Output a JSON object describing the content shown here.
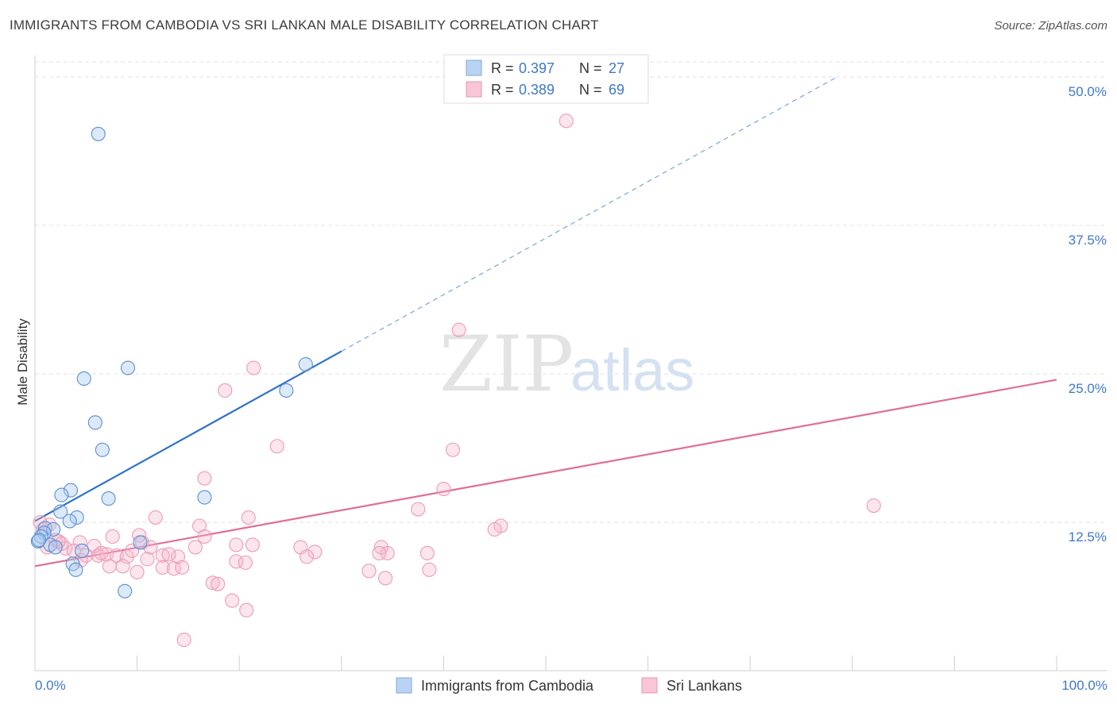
{
  "title": "IMMIGRANTS FROM CAMBODIA VS SRI LANKAN MALE DISABILITY CORRELATION CHART",
  "source": "Source: ZipAtlas.com",
  "watermark": {
    "zip": "ZIP",
    "atlas": "atlas"
  },
  "colors": {
    "blue": "#4a86d0",
    "blue_fill": "#a8c8f0",
    "pink": "#e06d98",
    "pink_fill": "#f5b5c8",
    "axis_text": "#3f78c8",
    "grid": "#e2e2e2"
  },
  "legend_top": [
    {
      "r_label": "R = ",
      "r_value": "0.397",
      "n_label": "N = ",
      "n_value": "27"
    },
    {
      "r_label": "R = ",
      "r_value": "0.389",
      "n_label": "N = ",
      "n_value": "69"
    }
  ],
  "chart_data": {
    "type": "scatter",
    "title": "IMMIGRANTS FROM CAMBODIA VS SRI LANKAN MALE DISABILITY CORRELATION CHART",
    "xlabel": "",
    "ylabel": "Male Disability",
    "xlim": [
      0,
      100
    ],
    "ylim": [
      0,
      50
    ],
    "x_tick_labels": [
      "0.0%",
      "100.0%"
    ],
    "y_ticks": [
      12.5,
      25.0,
      37.5,
      50.0
    ],
    "y_tick_labels": [
      "12.5%",
      "25.0%",
      "37.5%",
      "50.0%"
    ],
    "legend_position": "top-center",
    "series": [
      {
        "name": "Immigrants from Cambodia",
        "color": "#4a86d0",
        "points": [
          [
            6.2,
            45.2
          ],
          [
            4.8,
            24.6
          ],
          [
            9.1,
            25.5
          ],
          [
            5.9,
            20.9
          ],
          [
            6.6,
            18.6
          ],
          [
            3.5,
            15.2
          ],
          [
            2.6,
            14.8
          ],
          [
            7.2,
            14.5
          ],
          [
            16.6,
            14.6
          ],
          [
            2.5,
            13.4
          ],
          [
            4.1,
            12.9
          ],
          [
            3.4,
            12.6
          ],
          [
            1.0,
            12.0
          ],
          [
            1.8,
            11.9
          ],
          [
            0.9,
            11.6
          ],
          [
            0.6,
            11.3
          ],
          [
            10.3,
            10.8
          ],
          [
            1.5,
            10.6
          ],
          [
            2.0,
            10.4
          ],
          [
            4.6,
            10.1
          ],
          [
            0.3,
            10.9
          ],
          [
            3.7,
            9.0
          ],
          [
            4.0,
            8.5
          ],
          [
            8.8,
            6.7
          ],
          [
            24.6,
            23.6
          ],
          [
            26.5,
            25.8
          ],
          [
            0.4,
            11.0
          ]
        ],
        "trend": {
          "x0": 0,
          "y0": 12.6,
          "x1": 30.0,
          "y1": 26.9,
          "dashed_to_x": 78.5,
          "dashed_to_y": 50.0
        }
      },
      {
        "name": "Sri Lankans",
        "color": "#e06d98",
        "points": [
          [
            52.0,
            46.3
          ],
          [
            41.5,
            28.7
          ],
          [
            21.4,
            25.5
          ],
          [
            18.6,
            23.6
          ],
          [
            23.7,
            18.9
          ],
          [
            40.0,
            15.3
          ],
          [
            16.6,
            16.2
          ],
          [
            40.9,
            18.6
          ],
          [
            82.1,
            13.9
          ],
          [
            37.5,
            13.6
          ],
          [
            11.8,
            12.9
          ],
          [
            20.9,
            12.9
          ],
          [
            45.6,
            12.2
          ],
          [
            45.0,
            11.9
          ],
          [
            16.1,
            12.2
          ],
          [
            1.4,
            12.3
          ],
          [
            0.5,
            12.5
          ],
          [
            7.6,
            11.3
          ],
          [
            10.2,
            11.4
          ],
          [
            16.6,
            11.3
          ],
          [
            2.0,
            11.0
          ],
          [
            2.6,
            10.7
          ],
          [
            4.4,
            10.8
          ],
          [
            5.8,
            10.5
          ],
          [
            10.5,
            10.8
          ],
          [
            11.3,
            10.4
          ],
          [
            15.7,
            10.4
          ],
          [
            19.7,
            10.6
          ],
          [
            21.3,
            10.6
          ],
          [
            26.0,
            10.4
          ],
          [
            27.4,
            10.0
          ],
          [
            33.9,
            10.4
          ],
          [
            34.5,
            9.9
          ],
          [
            38.4,
            9.9
          ],
          [
            1.2,
            10.4
          ],
          [
            3.0,
            10.3
          ],
          [
            3.8,
            10.1
          ],
          [
            5.0,
            9.7
          ],
          [
            6.2,
            9.7
          ],
          [
            7.0,
            9.8
          ],
          [
            8.0,
            9.7
          ],
          [
            9.0,
            9.6
          ],
          [
            11.0,
            9.4
          ],
          [
            12.5,
            9.7
          ],
          [
            14.0,
            9.6
          ],
          [
            4.5,
            9.3
          ],
          [
            7.3,
            8.8
          ],
          [
            8.6,
            8.8
          ],
          [
            12.5,
            8.7
          ],
          [
            13.6,
            8.6
          ],
          [
            14.4,
            8.7
          ],
          [
            19.7,
            9.2
          ],
          [
            20.6,
            9.1
          ],
          [
            26.6,
            9.6
          ],
          [
            33.7,
            9.9
          ],
          [
            38.6,
            8.5
          ],
          [
            32.7,
            8.4
          ],
          [
            10.0,
            8.3
          ],
          [
            34.3,
            7.8
          ],
          [
            17.4,
            7.4
          ],
          [
            17.9,
            7.3
          ],
          [
            19.3,
            5.9
          ],
          [
            20.7,
            5.1
          ],
          [
            14.6,
            2.6
          ],
          [
            0.8,
            11.9
          ],
          [
            2.3,
            10.9
          ],
          [
            6.5,
            9.9
          ],
          [
            9.5,
            10.1
          ],
          [
            13.1,
            9.8
          ]
        ],
        "trend": {
          "x0": 0,
          "y0": 8.8,
          "x1": 100.0,
          "y1": 24.5
        }
      }
    ]
  }
}
